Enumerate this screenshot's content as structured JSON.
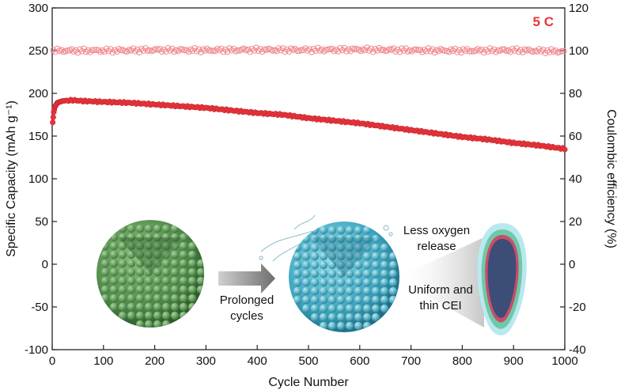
{
  "chart_data": {
    "type": "scatter",
    "xlabel": "Cycle Number",
    "ylabel": "Specific Capacity (mAh g⁻¹)",
    "y2label": "Coulombic efficiency (%)",
    "xlim": [
      0,
      1000
    ],
    "ylim": [
      -100,
      300
    ],
    "y2lim": [
      -40,
      120
    ],
    "x_ticks": [
      0,
      100,
      200,
      300,
      400,
      500,
      600,
      700,
      800,
      900,
      1000
    ],
    "y_ticks": [
      -100,
      -50,
      0,
      50,
      100,
      150,
      200,
      250,
      300
    ],
    "y2_ticks": [
      -40,
      -20,
      0,
      20,
      40,
      60,
      80,
      100,
      120
    ],
    "grid": false,
    "rate_label": "5 C",
    "series": [
      {
        "axis": "left",
        "marker": "filled-circle",
        "color": "#e8343c",
        "points": [
          [
            1,
            166
          ],
          [
            3,
            178
          ],
          [
            5,
            184
          ],
          [
            10,
            189
          ],
          [
            20,
            191
          ],
          [
            40,
            192
          ],
          [
            60,
            191
          ],
          [
            100,
            190
          ],
          [
            150,
            189
          ],
          [
            200,
            187
          ],
          [
            250,
            185
          ],
          [
            300,
            183
          ],
          [
            350,
            180
          ],
          [
            400,
            177
          ],
          [
            450,
            175
          ],
          [
            500,
            171
          ],
          [
            550,
            168
          ],
          [
            600,
            165
          ],
          [
            650,
            161
          ],
          [
            700,
            157
          ],
          [
            750,
            153
          ],
          [
            800,
            149
          ],
          [
            850,
            146
          ],
          [
            900,
            142
          ],
          [
            950,
            139
          ],
          [
            1000,
            135
          ]
        ]
      },
      {
        "axis": "right",
        "marker": "open-circle",
        "color": "#f08a8f",
        "points": [
          [
            1,
            100
          ],
          [
            100,
            100
          ],
          [
            200,
            100.3
          ],
          [
            300,
            100.2
          ],
          [
            400,
            100.4
          ],
          [
            500,
            100.3
          ],
          [
            600,
            100.5
          ],
          [
            700,
            100.2
          ],
          [
            800,
            100
          ],
          [
            900,
            100.2
          ],
          [
            1000,
            99.6
          ]
        ]
      }
    ],
    "annotations": {
      "arrow_label": [
        "Prolonged",
        "cycles"
      ],
      "oxygen_label": [
        "Less oxygen",
        "release"
      ],
      "cei_label": [
        "Uniform and",
        "thin CEI"
      ]
    }
  }
}
